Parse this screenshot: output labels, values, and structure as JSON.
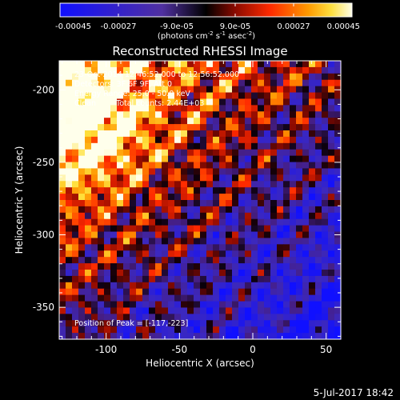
{
  "chart_data": {
    "type": "heatmap",
    "title": "Reconstructed RHESSI Image",
    "xlabel": "Heliocentric X (arcsec)",
    "ylabel": "Heliocentric Y (arcsec)",
    "xlim": [
      -132,
      60
    ],
    "ylim": [
      -372,
      -180
    ],
    "x_ticks": [
      -100,
      -50,
      0,
      50
    ],
    "y_ticks": [
      -200,
      -250,
      -300,
      -350
    ],
    "colorbar": {
      "range": [
        -0.00045,
        0.00045
      ],
      "tick_values": [
        -0.00045,
        -0.00027,
        -9e-05,
        9e-05,
        0.00027,
        0.00045
      ],
      "tick_labels": [
        "-0.00045",
        "-0.00027",
        "-9.0e-05",
        "9.0e-05",
        "0.00027",
        "0.00045"
      ],
      "units_prefix": "(photons cm",
      "units_e1": "-2",
      "units_mid1": " s",
      "units_e2": "-1",
      "units_mid2": " asec",
      "units_e3": "-2",
      "units_suffix": ")"
    },
    "info_lines": [
      "23-Oct-2014 12:46:52.000 to 12:56:52.000",
      "Detectors: 3F 6F 9F, Att 0",
      "Energy Range: 25.0 - 50.0 keV"
    ],
    "clean_label": "Clean",
    "total_counts": "Total counts: 2.44E+03",
    "peak_label": "Position of Peak = [-117,-223]",
    "peak_position": [
      -117,
      -223
    ]
  },
  "footer": {
    "date": "5-Jul-2017 18:42"
  },
  "colors": {
    "background": "#000000",
    "text": "#ffffff"
  }
}
